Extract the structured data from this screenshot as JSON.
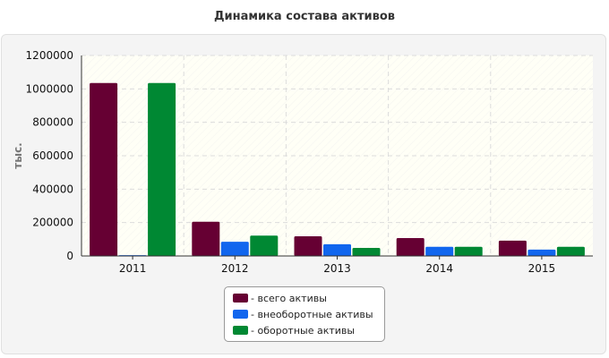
{
  "chart_data": {
    "type": "bar",
    "title": "Динамика состава активов",
    "ylabel": "тыс.",
    "xlabel": "",
    "categories": [
      "2011",
      "2012",
      "2013",
      "2014",
      "2015"
    ],
    "series": [
      {
        "name": "- всего активы",
        "color": "#660033",
        "values": [
          1035000,
          205000,
          118000,
          107000,
          92000
        ]
      },
      {
        "name": "- внеоборотные активы",
        "color": "#1166ee",
        "values": [
          5000,
          85000,
          70000,
          55000,
          38000
        ]
      },
      {
        "name": "- оборотные активы",
        "color": "#008833",
        "values": [
          1035000,
          122000,
          48000,
          55000,
          55000
        ]
      }
    ],
    "ylim": [
      0,
      1200000
    ],
    "yticks": [
      "0",
      "200000",
      "400000",
      "600000",
      "800000",
      "1000000",
      "1200000"
    ],
    "grid": true,
    "legend_position": "bottom-center"
  }
}
